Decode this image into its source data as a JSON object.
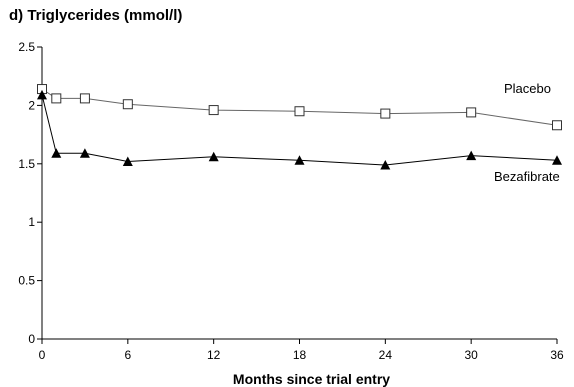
{
  "chart_data": {
    "type": "line",
    "title": "d) Triglycerides (mmol/l)",
    "xlabel": "Months since trial entry",
    "ylabel": "",
    "x_ticks": [
      0,
      6,
      12,
      18,
      24,
      30,
      36
    ],
    "y_ticks": [
      0,
      0.5,
      1,
      1.5,
      2,
      2.5
    ],
    "y_tick_labels": [
      "0",
      "0.5",
      "1",
      "1.5",
      "2",
      "2.5"
    ],
    "xlim": [
      0,
      36
    ],
    "ylim": [
      0,
      2.5
    ],
    "grid": false,
    "series": [
      {
        "name": "Placebo",
        "marker": "open-square",
        "color": "#666666",
        "x": [
          0,
          1,
          3,
          6,
          12,
          18,
          24,
          30,
          36
        ],
        "y": [
          2.14,
          2.06,
          2.06,
          2.01,
          1.96,
          1.95,
          1.93,
          1.94,
          1.83
        ]
      },
      {
        "name": "Bezafibrate",
        "marker": "filled-triangle",
        "color": "#000000",
        "x": [
          0,
          1,
          3,
          6,
          12,
          18,
          24,
          30,
          36
        ],
        "y": [
          2.09,
          1.59,
          1.59,
          1.52,
          1.56,
          1.53,
          1.49,
          1.57,
          1.53
        ]
      }
    ]
  }
}
